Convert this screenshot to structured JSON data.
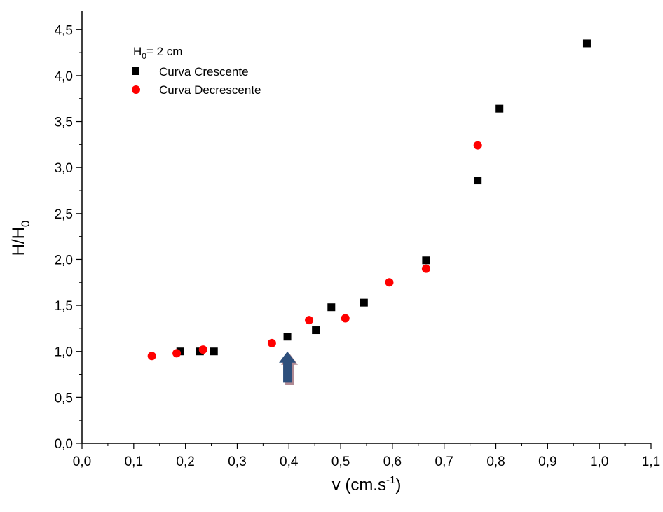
{
  "chart_data": {
    "type": "scatter",
    "xlabel": {
      "base": "v (cm.s",
      "sup": "-1",
      "close": ")"
    },
    "ylabel": {
      "base": "H/H",
      "sub": "0"
    },
    "xlim": [
      0.0,
      1.1
    ],
    "ylim": [
      0.0,
      4.7
    ],
    "x_ticks": [
      "0,0",
      "0,1",
      "0,2",
      "0,3",
      "0,4",
      "0,5",
      "0,6",
      "0,7",
      "0,8",
      "0,9",
      "1,0",
      "1,1"
    ],
    "y_ticks": [
      "0,0",
      "0,5",
      "1,0",
      "1,5",
      "2,0",
      "2,5",
      "3,0",
      "3,5",
      "4,0",
      "4,5"
    ],
    "legend": {
      "header": {
        "base": "H",
        "sub": "0",
        "rest": "= 2 cm"
      },
      "position": "top-left"
    },
    "series": [
      {
        "name": "Curva Crescente",
        "marker": "square",
        "color": "#000000",
        "points": [
          {
            "x": 0.19,
            "y": 1.0
          },
          {
            "x": 0.228,
            "y": 1.0
          },
          {
            "x": 0.255,
            "y": 1.0
          },
          {
            "x": 0.397,
            "y": 1.16
          },
          {
            "x": 0.452,
            "y": 1.23
          },
          {
            "x": 0.482,
            "y": 1.48
          },
          {
            "x": 0.545,
            "y": 1.53
          },
          {
            "x": 0.665,
            "y": 1.99
          },
          {
            "x": 0.765,
            "y": 2.86
          },
          {
            "x": 0.807,
            "y": 3.64
          },
          {
            "x": 0.976,
            "y": 4.35
          }
        ]
      },
      {
        "name": "Curva Decrescente",
        "marker": "circle",
        "color": "#ff0000",
        "points": [
          {
            "x": 0.135,
            "y": 0.95
          },
          {
            "x": 0.183,
            "y": 0.98
          },
          {
            "x": 0.234,
            "y": 1.02
          },
          {
            "x": 0.367,
            "y": 1.09
          },
          {
            "x": 0.439,
            "y": 1.34
          },
          {
            "x": 0.509,
            "y": 1.36
          },
          {
            "x": 0.594,
            "y": 1.75
          },
          {
            "x": 0.665,
            "y": 1.9
          },
          {
            "x": 0.765,
            "y": 3.24
          }
        ]
      }
    ],
    "annotation": {
      "type": "arrow-up",
      "x": 0.397,
      "y_base": 0.66,
      "y_tip": 1.0,
      "color": "#2d4f7c",
      "shadow_color": "#b08a94"
    }
  }
}
